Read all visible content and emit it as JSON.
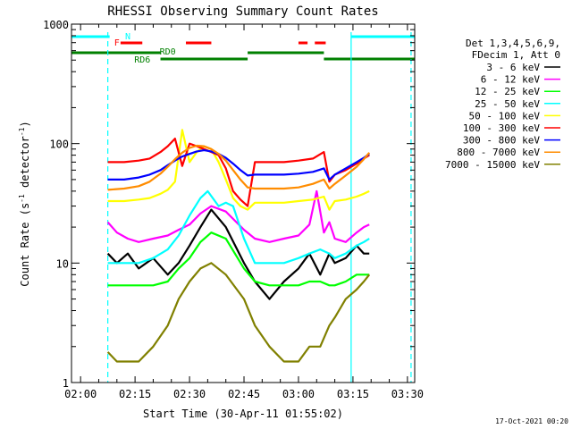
{
  "chart_data": {
    "type": "line",
    "title": "RHESSI Observing Summary Count Rates",
    "xlabel": "Start Time (30-Apr-11 01:55:02)",
    "ylabel_parts": [
      "Count Rate (s",
      "-1",
      " detector",
      "-1",
      ")"
    ],
    "y_scale": "log",
    "ylim": [
      1,
      1000
    ],
    "xlim": [
      -2.5,
      92
    ],
    "x_unit": "minutes after 02:00 UT",
    "xticks": [
      {
        "v": 0,
        "label": "02:00"
      },
      {
        "v": 15,
        "label": "02:15"
      },
      {
        "v": 30,
        "label": "02:30"
      },
      {
        "v": 45,
        "label": "02:45"
      },
      {
        "v": 60,
        "label": "03:00"
      },
      {
        "v": 75,
        "label": "03:15"
      },
      {
        "v": 90,
        "label": "03:30"
      }
    ],
    "yticks": [
      {
        "v": 1,
        "label": "1"
      },
      {
        "v": 10,
        "label": "10"
      },
      {
        "v": 100,
        "label": "100"
      },
      {
        "v": 1000,
        "label": "1000"
      }
    ],
    "legend_header": [
      "Det 1,3,4,5,6,9,",
      "FDecim 1, Att 0"
    ],
    "legend_position": "right",
    "grid": false,
    "series": [
      {
        "name": "3 - 6 keV",
        "color": "#000000",
        "x": [
          7.5,
          10,
          13,
          16,
          20,
          24,
          27,
          30,
          33,
          36,
          40,
          45,
          48,
          52,
          56,
          60,
          63,
          66,
          68.5,
          70,
          73,
          76,
          78,
          79.5
        ],
        "y": [
          12,
          10,
          12,
          9,
          11,
          8,
          10,
          14,
          20,
          28,
          20,
          10,
          7,
          5,
          7,
          9,
          12,
          8,
          12,
          10,
          11,
          14,
          12,
          12
        ]
      },
      {
        "name": "6 - 12 keV",
        "color": "#ff00ff",
        "x": [
          7.5,
          10,
          13,
          16,
          20,
          24,
          27,
          30,
          33,
          36,
          40,
          45,
          48,
          52,
          56,
          60,
          63,
          65,
          67,
          68.5,
          70,
          73,
          76,
          78,
          79.5
        ],
        "y": [
          22,
          18,
          16,
          15,
          16,
          17,
          19,
          21,
          26,
          30,
          27,
          19,
          16,
          15,
          16,
          17,
          21,
          40,
          18,
          22,
          16,
          15,
          18,
          20,
          21
        ]
      },
      {
        "name": "12 - 25 keV",
        "color": "#00ff00",
        "x": [
          7.5,
          12,
          16,
          20,
          24,
          27,
          30,
          33,
          36,
          40,
          45,
          48,
          52,
          56,
          60,
          63,
          66,
          68.5,
          70,
          73,
          76,
          78,
          79.5
        ],
        "y": [
          6.5,
          6.5,
          6.5,
          6.5,
          7,
          9,
          11,
          15,
          18,
          16,
          9,
          7,
          6.5,
          6.5,
          6.5,
          7,
          7,
          6.5,
          6.5,
          7,
          8,
          8,
          8
        ]
      },
      {
        "name": "25 - 50 keV",
        "color": "#00ffff",
        "x": [
          7.5,
          12,
          16,
          20,
          24,
          27,
          30,
          33,
          35,
          38,
          40,
          42,
          45,
          48,
          52,
          56,
          60,
          63,
          66,
          68.5,
          70,
          73,
          76,
          78,
          79.5
        ],
        "y": [
          10,
          10,
          10,
          11,
          13,
          17,
          25,
          35,
          40,
          30,
          32,
          30,
          16,
          10,
          10,
          10,
          11,
          12,
          13,
          12,
          11,
          12,
          14,
          15,
          16
        ]
      },
      {
        "name": "50 - 100 keV",
        "color": "#ffff00",
        "x": [
          7.5,
          12,
          16,
          19,
          22,
          24,
          26,
          28,
          30,
          32,
          34,
          36,
          38,
          40,
          42,
          44,
          46,
          48,
          52,
          56,
          60,
          64,
          67,
          68.5,
          70,
          73,
          76,
          78,
          79.5
        ],
        "y": [
          33,
          33,
          34,
          35,
          38,
          41,
          48,
          130,
          70,
          85,
          95,
          90,
          70,
          50,
          35,
          30,
          28,
          32,
          32,
          32,
          33,
          34,
          36,
          28,
          33,
          34,
          36,
          38,
          40
        ]
      },
      {
        "name": "100 - 300 keV",
        "color": "#ff0000",
        "x": [
          7.5,
          12,
          16,
          19,
          22,
          24,
          26,
          28,
          30,
          32,
          34,
          36,
          38,
          40,
          42,
          44,
          46,
          48,
          52,
          56,
          60,
          64,
          67,
          68.5,
          70,
          73,
          76,
          78,
          79.5
        ],
        "y": [
          70,
          70,
          72,
          75,
          85,
          95,
          110,
          65,
          100,
          95,
          90,
          85,
          80,
          62,
          40,
          34,
          30,
          70,
          70,
          70,
          72,
          75,
          85,
          48,
          55,
          60,
          68,
          75,
          80
        ]
      },
      {
        "name": "300 - 800 keV",
        "color": "#0000ff",
        "x": [
          7.5,
          12,
          16,
          19,
          22,
          24,
          26,
          28,
          30,
          32,
          34,
          36,
          38,
          40,
          42,
          44,
          46,
          48,
          52,
          56,
          60,
          64,
          67,
          68.5,
          70,
          73,
          76,
          78,
          79.5
        ],
        "y": [
          50,
          50,
          52,
          55,
          60,
          66,
          72,
          78,
          82,
          86,
          88,
          86,
          82,
          76,
          68,
          60,
          54,
          55,
          55,
          55,
          56,
          58,
          62,
          50,
          55,
          62,
          70,
          76,
          82
        ]
      },
      {
        "name": "800 - 7000 keV",
        "color": "#ff8c00",
        "x": [
          7.5,
          12,
          16,
          19,
          22,
          24,
          26,
          28,
          30,
          32,
          34,
          36,
          38,
          40,
          42,
          44,
          46,
          48,
          52,
          56,
          60,
          64,
          67,
          68.5,
          70,
          73,
          76,
          78,
          79.5
        ],
        "y": [
          41,
          42,
          44,
          48,
          56,
          64,
          74,
          84,
          92,
          96,
          95,
          90,
          82,
          72,
          60,
          50,
          43,
          42,
          42,
          42,
          43,
          46,
          50,
          42,
          46,
          54,
          64,
          74,
          84
        ]
      },
      {
        "name": "7000 - 15000 keV",
        "color": "#808000",
        "x": [
          7.5,
          10,
          13,
          16,
          20,
          24,
          27,
          30,
          33,
          36,
          40,
          45,
          48,
          52,
          56,
          60,
          63,
          66,
          68.5,
          70,
          73,
          76,
          78,
          79.5
        ],
        "y": [
          1.8,
          1.5,
          1.5,
          1.5,
          2,
          3,
          5,
          7,
          9,
          10,
          8,
          5,
          3,
          2,
          1.5,
          1.5,
          2,
          2,
          3,
          3.5,
          5,
          6,
          7,
          8
        ]
      }
    ],
    "state_bars": [
      {
        "label": "RD0",
        "color": "#008000",
        "segments": [
          [
            -2.5,
            22
          ],
          [
            22,
            46
          ],
          [
            46,
            67
          ],
          [
            67,
            92
          ]
        ],
        "label_at": 24
      },
      {
        "label": "RD6",
        "color": "#008000",
        "segments": [],
        "label_at": 17
      },
      {
        "label": "F",
        "color": "#ff0000",
        "segments": [
          [
            11,
            17
          ],
          [
            29,
            36
          ],
          [
            60,
            62.5
          ],
          [
            64.5,
            67.5
          ]
        ],
        "label_at": 10
      },
      {
        "label": "N",
        "color": "#00ffff",
        "segments": [
          [
            -2.5,
            8
          ],
          [
            74.5,
            92
          ]
        ],
        "label_at": 13
      }
    ],
    "vlines": [
      {
        "x": 7.5,
        "color": "#00ffff",
        "style": "dashed"
      },
      {
        "x": 74.5,
        "color": "#00ffff",
        "style": "solid"
      },
      {
        "x": 91,
        "color": "#00ffff",
        "style": "dashed"
      }
    ],
    "footer": "17-Oct-2021 00:20"
  }
}
